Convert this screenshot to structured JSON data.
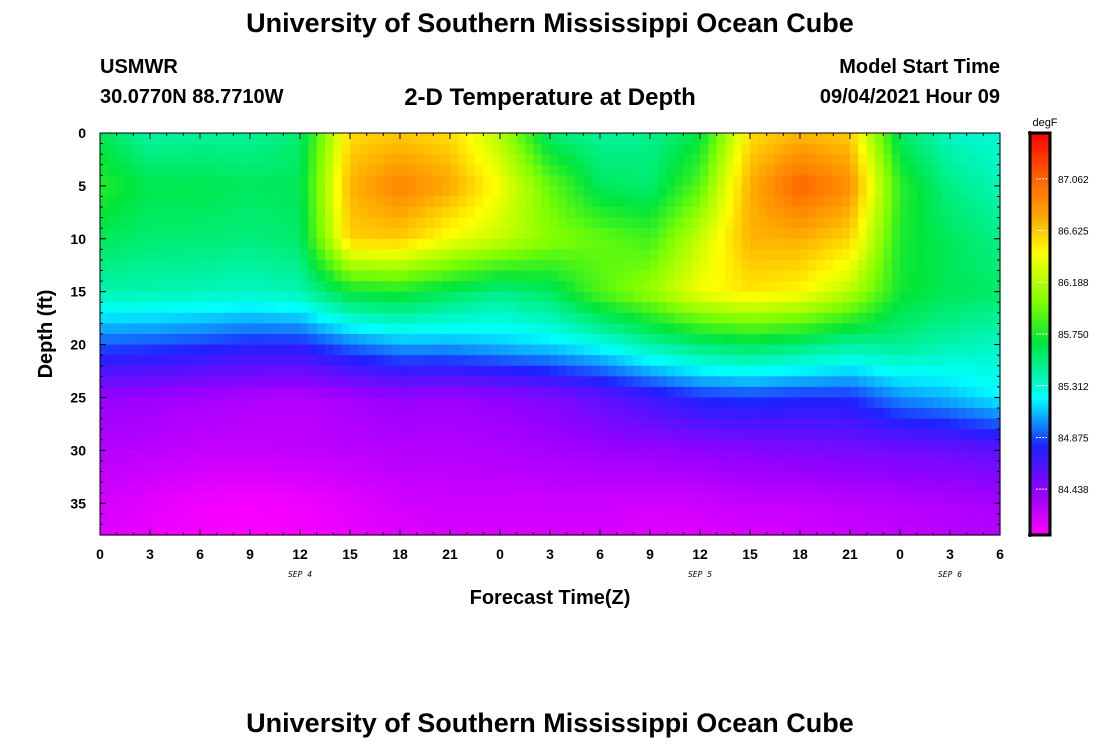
{
  "header": {
    "title_top": "University of Southern Mississippi Ocean Cube",
    "station_id": "USMWR",
    "coordinates": "30.0770N  88.7710W",
    "subtitle": "2-D Temperature at Depth",
    "model_label": "Model Start Time",
    "model_time": "09/04/2021 Hour 09"
  },
  "footer": {
    "title_bottom": "University of Southern Mississippi Ocean Cube"
  },
  "chart_data": {
    "type": "heatmap",
    "title": "2-D Temperature at Depth",
    "xlabel": "Forecast Time(Z)",
    "ylabel": "Depth (ft)",
    "x_hours": [
      0,
      3,
      6,
      9,
      12,
      15,
      18,
      21,
      24,
      27,
      30,
      33,
      36,
      39,
      42,
      45,
      48,
      51,
      54
    ],
    "x_tick_labels": [
      "0",
      "3",
      "6",
      "9",
      "12",
      "15",
      "18",
      "21",
      "0",
      "3",
      "6",
      "9",
      "12",
      "15",
      "18",
      "21",
      "0",
      "3",
      "6"
    ],
    "date_labels": [
      {
        "label": "SEP 4",
        "hour": 12
      },
      {
        "label": "SEP 5",
        "hour": 36
      },
      {
        "label": "SEP 6",
        "hour": 51
      }
    ],
    "xlim": [
      0,
      54
    ],
    "y_ticks": [
      0,
      5,
      10,
      15,
      20,
      25,
      30,
      35
    ],
    "y_tick_labels": [
      "0",
      "5",
      "10",
      "15",
      "20",
      "25",
      "30",
      "35"
    ],
    "ylim": [
      0,
      38
    ],
    "colorbar": {
      "unit": "degF",
      "labels": [
        "87.062",
        "86.625",
        "86.188",
        "85.750",
        "85.312",
        "84.875",
        "84.438"
      ],
      "min": 84.05,
      "max": 87.45
    },
    "depths_ft": [
      0,
      5,
      10,
      15,
      20,
      25,
      30,
      35,
      38
    ],
    "temperature_degF": [
      [
        85.62,
        85.42,
        85.45,
        85.45,
        85.55,
        86.56,
        86.62,
        86.55,
        86.18,
        85.55,
        85.45,
        85.48,
        85.65,
        86.55,
        86.68,
        86.62,
        85.58,
        85.35,
        85.3
      ],
      [
        85.78,
        85.64,
        85.64,
        85.6,
        85.62,
        86.7,
        86.9,
        86.75,
        86.4,
        85.95,
        85.6,
        85.55,
        85.92,
        86.72,
        87.05,
        86.85,
        85.8,
        85.5,
        85.38
      ],
      [
        85.62,
        85.55,
        85.55,
        85.52,
        85.58,
        86.6,
        86.62,
        86.4,
        86.25,
        86.05,
        85.95,
        85.85,
        86.25,
        86.7,
        86.72,
        86.58,
        85.75,
        85.6,
        85.5
      ],
      [
        85.4,
        85.4,
        85.38,
        85.35,
        85.4,
        85.7,
        85.75,
        85.62,
        85.5,
        85.6,
        85.9,
        86.1,
        86.4,
        86.52,
        86.45,
        86.2,
        85.72,
        85.62,
        85.58
      ],
      [
        84.9,
        84.88,
        84.85,
        84.8,
        84.8,
        84.95,
        85.05,
        85.05,
        85.1,
        85.15,
        85.25,
        85.42,
        85.55,
        85.62,
        85.55,
        85.45,
        85.48,
        85.4,
        85.35
      ],
      [
        84.4,
        84.38,
        84.35,
        84.32,
        84.3,
        84.35,
        84.4,
        84.38,
        84.42,
        84.48,
        84.58,
        84.7,
        84.82,
        84.85,
        84.82,
        84.82,
        85.0,
        85.08,
        85.2
      ],
      [
        84.3,
        84.28,
        84.25,
        84.25,
        84.26,
        84.28,
        84.3,
        84.3,
        84.32,
        84.35,
        84.38,
        84.4,
        84.42,
        84.45,
        84.48,
        84.5,
        84.52,
        84.55,
        84.6
      ],
      [
        84.2,
        84.15,
        84.1,
        84.08,
        84.1,
        84.15,
        84.2,
        84.22,
        84.22,
        84.22,
        84.22,
        84.2,
        84.22,
        84.25,
        84.25,
        84.28,
        84.3,
        84.32,
        84.35
      ],
      [
        84.16,
        84.12,
        84.08,
        84.06,
        84.08,
        84.12,
        84.16,
        84.18,
        84.18,
        84.18,
        84.18,
        84.16,
        84.16,
        84.18,
        84.2,
        84.22,
        84.25,
        84.28,
        84.3
      ]
    ]
  }
}
